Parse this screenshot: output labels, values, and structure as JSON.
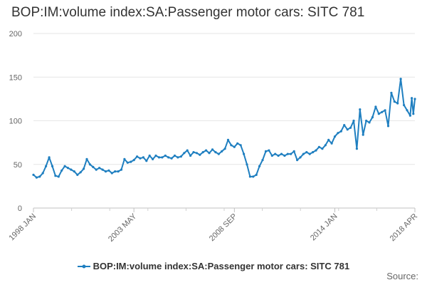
{
  "chart_data": {
    "type": "line",
    "title": "BOP:IM:volume index:SA:Passenger motor cars: SITC 781",
    "xlabel": "",
    "ylabel": "",
    "x_tick_labels": [
      "1998 JAN",
      "2003 MAY",
      "2008 SEP",
      "2014 JAN",
      "2018 APR"
    ],
    "y_tick_labels": [
      "0",
      "50",
      "100",
      "150",
      "200"
    ],
    "ylim": [
      0,
      200
    ],
    "grid": true,
    "legend_position": "bottom",
    "series": [
      {
        "name": "BOP:IM:volume index:SA:Passenger motor cars: SITC 781",
        "color": "#1f7fc0",
        "points": [
          [
            "1998-01",
            38
          ],
          [
            "1998-03",
            35
          ],
          [
            "1998-05",
            36
          ],
          [
            "1998-07",
            40
          ],
          [
            "1998-09",
            48
          ],
          [
            "1998-11",
            58
          ],
          [
            "1999-01",
            48
          ],
          [
            "1999-03",
            37
          ],
          [
            "1999-05",
            36
          ],
          [
            "1999-07",
            43
          ],
          [
            "1999-09",
            48
          ],
          [
            "1999-11",
            46
          ],
          [
            "2000-01",
            44
          ],
          [
            "2000-03",
            42
          ],
          [
            "2000-05",
            38
          ],
          [
            "2000-07",
            41
          ],
          [
            "2000-09",
            45
          ],
          [
            "2000-11",
            56
          ],
          [
            "2001-01",
            50
          ],
          [
            "2001-03",
            47
          ],
          [
            "2001-05",
            44
          ],
          [
            "2001-07",
            46
          ],
          [
            "2001-09",
            44
          ],
          [
            "2001-11",
            42
          ],
          [
            "2002-01",
            43
          ],
          [
            "2002-03",
            40
          ],
          [
            "2002-05",
            42
          ],
          [
            "2002-07",
            42
          ],
          [
            "2002-09",
            44
          ],
          [
            "2002-11",
            56
          ],
          [
            "2003-01",
            52
          ],
          [
            "2003-03",
            53
          ],
          [
            "2003-05",
            55
          ],
          [
            "2003-07",
            59
          ],
          [
            "2003-09",
            57
          ],
          [
            "2003-11",
            58
          ],
          [
            "2004-01",
            54
          ],
          [
            "2004-03",
            60
          ],
          [
            "2004-05",
            56
          ],
          [
            "2004-07",
            60
          ],
          [
            "2004-09",
            58
          ],
          [
            "2004-11",
            58
          ],
          [
            "2005-01",
            60
          ],
          [
            "2005-03",
            58
          ],
          [
            "2005-05",
            57
          ],
          [
            "2005-07",
            60
          ],
          [
            "2005-09",
            58
          ],
          [
            "2005-11",
            59
          ],
          [
            "2006-01",
            63
          ],
          [
            "2006-03",
            66
          ],
          [
            "2006-05",
            60
          ],
          [
            "2006-07",
            64
          ],
          [
            "2006-09",
            63
          ],
          [
            "2006-11",
            61
          ],
          [
            "2007-01",
            64
          ],
          [
            "2007-03",
            66
          ],
          [
            "2007-05",
            63
          ],
          [
            "2007-07",
            67
          ],
          [
            "2007-09",
            64
          ],
          [
            "2007-11",
            62
          ],
          [
            "2008-01",
            65
          ],
          [
            "2008-03",
            68
          ],
          [
            "2008-05",
            78
          ],
          [
            "2008-07",
            72
          ],
          [
            "2008-09",
            70
          ],
          [
            "2008-11",
            74
          ],
          [
            "2009-01",
            72
          ],
          [
            "2009-03",
            62
          ],
          [
            "2009-05",
            50
          ],
          [
            "2009-07",
            36
          ],
          [
            "2009-09",
            36
          ],
          [
            "2009-11",
            38
          ],
          [
            "2010-01",
            48
          ],
          [
            "2010-03",
            55
          ],
          [
            "2010-05",
            65
          ],
          [
            "2010-07",
            66
          ],
          [
            "2010-09",
            60
          ],
          [
            "2010-11",
            62
          ],
          [
            "2011-01",
            60
          ],
          [
            "2011-03",
            62
          ],
          [
            "2011-05",
            60
          ],
          [
            "2011-07",
            62
          ],
          [
            "2011-09",
            62
          ],
          [
            "2011-11",
            65
          ],
          [
            "2012-01",
            55
          ],
          [
            "2012-03",
            58
          ],
          [
            "2012-05",
            62
          ],
          [
            "2012-07",
            64
          ],
          [
            "2012-09",
            62
          ],
          [
            "2012-11",
            64
          ],
          [
            "2013-01",
            66
          ],
          [
            "2013-03",
            70
          ],
          [
            "2013-05",
            68
          ],
          [
            "2013-07",
            72
          ],
          [
            "2013-09",
            78
          ],
          [
            "2013-11",
            74
          ],
          [
            "2014-01",
            82
          ],
          [
            "2014-03",
            86
          ],
          [
            "2014-05",
            88
          ],
          [
            "2014-07",
            95
          ],
          [
            "2014-09",
            90
          ],
          [
            "2014-11",
            92
          ],
          [
            "2015-01",
            100
          ],
          [
            "2015-03",
            68
          ],
          [
            "2015-05",
            113
          ],
          [
            "2015-07",
            84
          ],
          [
            "2015-09",
            100
          ],
          [
            "2015-11",
            98
          ],
          [
            "2016-01",
            104
          ],
          [
            "2016-03",
            116
          ],
          [
            "2016-05",
            108
          ],
          [
            "2016-07",
            110
          ],
          [
            "2016-09",
            112
          ],
          [
            "2016-11",
            94
          ],
          [
            "2017-01",
            132
          ],
          [
            "2017-03",
            122
          ],
          [
            "2017-05",
            120
          ],
          [
            "2017-07",
            148
          ],
          [
            "2017-09",
            118
          ],
          [
            "2017-11",
            112
          ],
          [
            "2018-01",
            106
          ],
          [
            "2018-02",
            126
          ],
          [
            "2018-03",
            108
          ],
          [
            "2018-04",
            125
          ]
        ]
      }
    ]
  },
  "source_label": "Source:"
}
